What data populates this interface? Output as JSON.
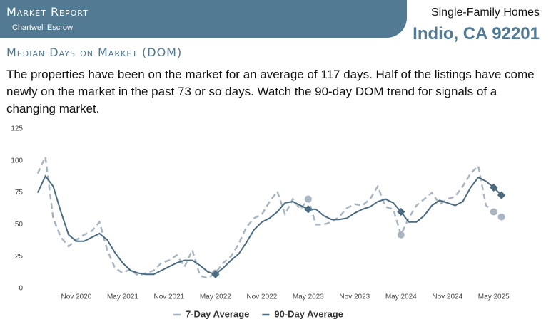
{
  "header": {
    "title": "Market Report",
    "subtitle": "Chartwell Escrow",
    "property_type": "Single-Family Homes",
    "location": "Indio, CA 92201"
  },
  "section_title": "Median Days on Market (DOM)",
  "description": "The properties have been on the market for an average of 117 days. Half of the listings have come newly on the market in the past 73 or so days. Watch the 90-day DOM trend for signals of a changing market.",
  "chart_data": {
    "type": "line",
    "x": [
      "2020-06",
      "2020-07",
      "2020-08",
      "2020-09",
      "2020-10",
      "2020-11",
      "2020-12",
      "2021-01",
      "2021-02",
      "2021-03",
      "2021-04",
      "2021-05",
      "2021-06",
      "2021-07",
      "2021-08",
      "2021-09",
      "2021-10",
      "2021-11",
      "2021-12",
      "2022-01",
      "2022-02",
      "2022-03",
      "2022-04",
      "2022-05",
      "2022-06",
      "2022-07",
      "2022-08",
      "2022-09",
      "2022-10",
      "2022-11",
      "2022-12",
      "2023-01",
      "2023-02",
      "2023-03",
      "2023-04",
      "2023-05",
      "2023-06",
      "2023-07",
      "2023-08",
      "2023-09",
      "2023-10",
      "2023-11",
      "2023-12",
      "2024-01",
      "2024-02",
      "2024-03",
      "2024-04",
      "2024-05",
      "2024-06",
      "2024-07",
      "2024-08",
      "2024-09",
      "2024-10",
      "2024-11",
      "2024-12",
      "2025-01",
      "2025-02",
      "2025-03",
      "2025-04",
      "2025-05",
      "2025-06"
    ],
    "series": [
      {
        "name": "7-Day Average",
        "color": "#a9b6c2",
        "dashed": true,
        "values": [
          90,
          103,
          55,
          40,
          33,
          38,
          42,
          45,
          52,
          30,
          16,
          12,
          15,
          10,
          12,
          14,
          20,
          22,
          26,
          17,
          30,
          10,
          8,
          12,
          20,
          25,
          35,
          48,
          55,
          58,
          68,
          76,
          58,
          70,
          62,
          70,
          50,
          50,
          52,
          56,
          63,
          66,
          65,
          70,
          80,
          64,
          62,
          42,
          55,
          65,
          70,
          75,
          66,
          70,
          72,
          80,
          90,
          96,
          65,
          60,
          56
        ]
      },
      {
        "name": "90-Day Average",
        "color": "#4a6a80",
        "dashed": false,
        "values": [
          75,
          88,
          80,
          60,
          42,
          37,
          37,
          40,
          43,
          38,
          28,
          20,
          14,
          12,
          11,
          11,
          14,
          17,
          20,
          22,
          22,
          18,
          13,
          11,
          16,
          22,
          27,
          36,
          46,
          52,
          55,
          60,
          67,
          68,
          65,
          62,
          62,
          57,
          54,
          54,
          55,
          59,
          62,
          64,
          68,
          70,
          67,
          60,
          52,
          52,
          57,
          65,
          69,
          67,
          65,
          68,
          79,
          87,
          84,
          79,
          73
        ]
      }
    ],
    "ylim": [
      0,
      125
    ],
    "yticks": [
      0,
      25,
      50,
      75,
      100,
      125
    ],
    "xticks": [
      {
        "value": "2020-11",
        "label": "Nov 2020"
      },
      {
        "value": "2021-05",
        "label": "May 2021"
      },
      {
        "value": "2021-11",
        "label": "Nov 2021"
      },
      {
        "value": "2022-05",
        "label": "May 2022"
      },
      {
        "value": "2022-11",
        "label": "Nov 2022"
      },
      {
        "value": "2023-05",
        "label": "May 2023"
      },
      {
        "value": "2023-11",
        "label": "Nov 2023"
      },
      {
        "value": "2024-05",
        "label": "May 2024"
      },
      {
        "value": "2024-11",
        "label": "Nov 2024"
      },
      {
        "value": "2025-05",
        "label": "May 2025"
      }
    ],
    "grid": false,
    "legend": "bottom"
  }
}
